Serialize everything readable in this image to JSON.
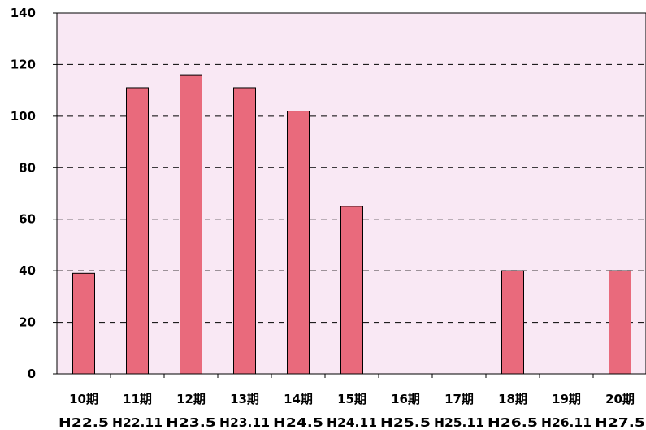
{
  "chart_data": {
    "type": "bar",
    "categories": [
      "10期",
      "11期",
      "12期",
      "13期",
      "14期",
      "15期",
      "16期",
      "17期",
      "18期",
      "19期",
      "20期"
    ],
    "sublabels": [
      "H22.5",
      "H22.11",
      "H23.5",
      "H23.11",
      "H24.5",
      "H24.11",
      "H25.5",
      "H25.11",
      "H26.5",
      "H26.11",
      "H27.5"
    ],
    "values": [
      39,
      111,
      116,
      111,
      102,
      65,
      0,
      0,
      40,
      0,
      40
    ],
    "yticks": [
      "0",
      "20",
      "40",
      "60",
      "80",
      "100",
      "120",
      "140"
    ],
    "ylim": [
      0,
      140
    ],
    "grid": true,
    "title": "",
    "xlabel": "",
    "ylabel": "",
    "colors": {
      "bar": "#e96a7c",
      "bar_stroke": "#000000",
      "plot_bg": "#f9e8f4",
      "grid": "#000000"
    }
  }
}
